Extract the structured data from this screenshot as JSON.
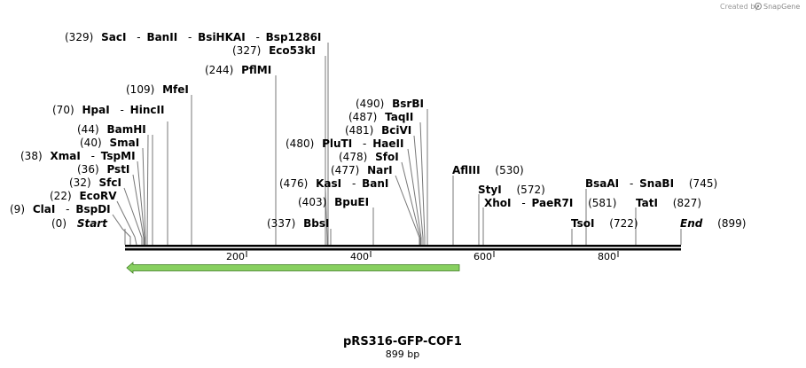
{
  "credit": {
    "prefix": "Created by",
    "brand": "SnapGene",
    "icon": "snapgene-logo-icon"
  },
  "map": {
    "name": "pRS316-GFP-COF1",
    "length_label": "899 bp",
    "length": 899,
    "ticks": [
      "200",
      "400",
      "600",
      "800"
    ],
    "backbone_color": "#000000",
    "feature_color": "#88d060",
    "feature_outline": "#3b7a1e",
    "line_color": "#777777"
  },
  "sites": [
    {
      "pos": "(329)",
      "names": [
        "SacI",
        "BanII",
        "BsiHKAI",
        "Bsp1286I"
      ],
      "cut": 329
    },
    {
      "pos": "(327)",
      "names": [
        "Eco53kI"
      ],
      "cut": 327
    },
    {
      "pos": "(244)",
      "names": [
        "PflMI"
      ],
      "cut": 244
    },
    {
      "pos": "(109)",
      "names": [
        "MfeI"
      ],
      "cut": 109
    },
    {
      "pos": "(70)",
      "names": [
        "HpaI",
        "HincII"
      ],
      "cut": 70
    },
    {
      "pos": "(44)",
      "names": [
        "BamHI"
      ],
      "cut": 44
    },
    {
      "pos": "(40)",
      "names": [
        "SmaI"
      ],
      "cut": 40
    },
    {
      "pos": "(38)",
      "names": [
        "XmaI",
        "TspMI"
      ],
      "cut": 38
    },
    {
      "pos": "(36)",
      "names": [
        "PstI"
      ],
      "cut": 36
    },
    {
      "pos": "(32)",
      "names": [
        "SfcI"
      ],
      "cut": 32
    },
    {
      "pos": "(22)",
      "names": [
        "EcoRV"
      ],
      "cut": 22
    },
    {
      "pos": "(9)",
      "names": [
        "ClaI",
        "BspDI"
      ],
      "cut": 9
    },
    {
      "pos": "(0)",
      "names": [
        "Start"
      ],
      "cut": 0,
      "italic": true
    },
    {
      "pos": "(337)",
      "names": [
        "BbsI"
      ],
      "cut": 337
    },
    {
      "pos": "(403)",
      "names": [
        "BpuEI"
      ],
      "cut": 403
    },
    {
      "pos": "(476)",
      "names": [
        "KasI",
        "BanI"
      ],
      "cut": 476
    },
    {
      "pos": "(477)",
      "names": [
        "NarI"
      ],
      "cut": 477
    },
    {
      "pos": "(478)",
      "names": [
        "SfoI"
      ],
      "cut": 478
    },
    {
      "pos": "(480)",
      "names": [
        "PluTI",
        "HaeII"
      ],
      "cut": 480
    },
    {
      "pos": "(481)",
      "names": [
        "BciVI"
      ],
      "cut": 481
    },
    {
      "pos": "(487)",
      "names": [
        "TaqII"
      ],
      "cut": 487
    },
    {
      "pos": "(490)",
      "names": [
        "BsrBI"
      ],
      "cut": 490
    },
    {
      "pos": "(530)",
      "names": [
        "AflIII"
      ],
      "cut": 530
    },
    {
      "pos": "(572)",
      "names": [
        "StyI"
      ],
      "cut": 572
    },
    {
      "pos": "(581)",
      "names": [
        "XhoI",
        "PaeR7I"
      ],
      "cut": 581
    },
    {
      "pos": "(722)",
      "names": [
        "TsoI"
      ],
      "cut": 722
    },
    {
      "pos": "(745)",
      "names": [
        "BsaAI",
        "SnaBI"
      ],
      "cut": 745
    },
    {
      "pos": "(827)",
      "names": [
        "TatI"
      ],
      "cut": 827
    },
    {
      "pos": "(899)",
      "names": [
        "End"
      ],
      "cut": 899,
      "italic": true
    }
  ]
}
